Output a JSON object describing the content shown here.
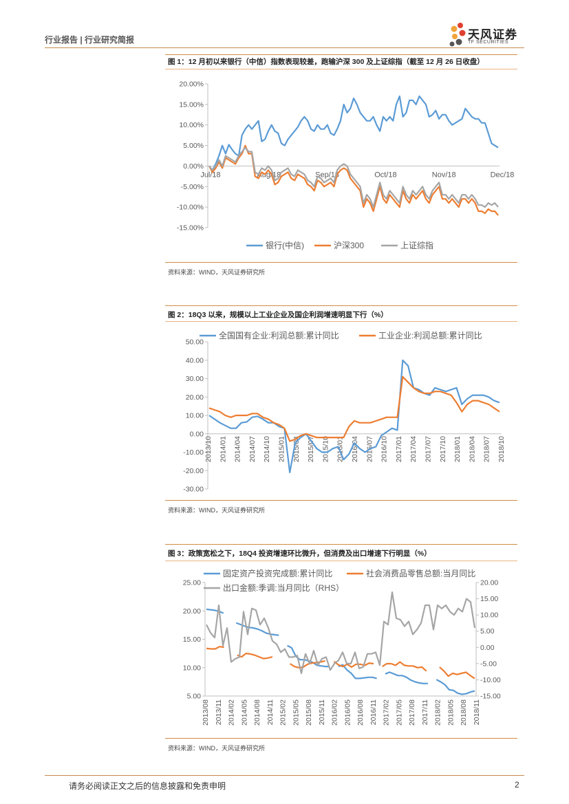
{
  "header": {
    "text": "行业报告 | 行业研究简报",
    "logo_cn": "天风证券",
    "logo_en": "TF SECURITIES"
  },
  "footer": {
    "disclaimer": "请务必阅读正文之后的信息披露和免责申明",
    "page": "2"
  },
  "figures": [
    {
      "title": "图 1：12 月初以来银行（中信）指数表现较差，跑输沪深 300 及上证综指（截至 12 月 26 日收盘）",
      "source": "资料来源：WIND，天风证券研究所"
    },
    {
      "title": "图 2：18Q3 以来，规模以上工业企业及国企利润增速明显下行（%）",
      "source": "资料来源：WIND，天风证券研究所"
    },
    {
      "title": "图 3：政策宽松之下，18Q4 投资增速环比微升，但消费及出口增速下行明显（%）",
      "source": "资料来源：WIND，天风证券研究所"
    }
  ],
  "chart_data": [
    {
      "type": "line",
      "x_ticks": [
        "Jul/18",
        "Aug/18",
        "Sep/18",
        "Oct/18",
        "Nov/18",
        "Dec/18"
      ],
      "y_ticks": [
        "20.00%",
        "15.00%",
        "10.00%",
        "5.00%",
        "0.00%",
        "-5.00%",
        "-10.00%",
        "-15.00%"
      ],
      "ylim": [
        -15,
        20
      ],
      "legend": "bottom",
      "colors": [
        "#5b9bd5",
        "#ed7d31",
        "#a5a5a5"
      ],
      "series": [
        {
          "name": "银行(中信)",
          "values": [
            0,
            -1,
            0.5,
            2.5,
            5,
            3,
            5.2,
            4,
            3,
            2.5,
            7.5,
            9,
            10,
            9,
            10,
            11,
            6,
            6.5,
            8.5,
            10,
            8.5,
            8,
            5.5,
            5,
            6.5,
            7.5,
            8.5,
            9.5,
            11,
            12,
            11,
            9,
            8.5,
            10,
            9,
            9,
            10,
            8,
            7.5,
            9,
            11,
            15,
            13,
            14,
            16.5,
            15,
            13,
            12,
            11,
            11,
            12,
            10,
            8.5,
            12,
            11,
            12,
            11,
            15,
            17,
            12,
            13,
            16,
            16,
            15,
            17,
            16,
            15,
            12,
            12.5,
            13.5,
            11.5,
            12.5,
            12.5,
            11,
            10,
            10.5,
            11,
            11.5,
            14,
            13,
            12,
            11.5,
            11.5,
            10.5,
            10.5,
            8,
            5.5,
            5,
            4.5
          ]
        },
        {
          "name": "沪深300",
          "values": [
            0,
            -1.5,
            -0.5,
            1,
            -0.5,
            2,
            1.5,
            1,
            0.5,
            2,
            3,
            5,
            3,
            3,
            -2.5,
            -3,
            -1.5,
            -2,
            -1,
            -2,
            -4.5,
            -4,
            -2.5,
            -2,
            -1.5,
            -3,
            -3.5,
            -2,
            -2.5,
            -3,
            -4.5,
            -5,
            -6,
            -3.5,
            -4,
            -5,
            -4.5,
            -4,
            -5,
            -2,
            -1,
            -0.5,
            -1,
            -3,
            -4,
            -5,
            -6,
            -10,
            -8,
            -9,
            -11,
            -8,
            -5,
            -8,
            -9,
            -7,
            -8,
            -9,
            -10,
            -6,
            -8,
            -9,
            -7,
            -8,
            -7,
            -6,
            -8,
            -9,
            -7,
            -6,
            -5,
            -8,
            -8,
            -9,
            -8,
            -9,
            -10,
            -8,
            -8,
            -9,
            -8,
            -9,
            -11,
            -11,
            -11.5,
            -10.5,
            -11,
            -11,
            -12
          ]
        },
        {
          "name": "上证综指",
          "values": [
            0,
            -1,
            0,
            1.5,
            0,
            2.5,
            2,
            1.5,
            1,
            2.5,
            3.5,
            4.5,
            3.5,
            3.5,
            -1.5,
            -2,
            -0.5,
            -1,
            0,
            -1,
            -3.5,
            -3,
            -1.5,
            -1,
            -0.5,
            -2,
            -2.5,
            -1,
            -1.5,
            -2,
            -3.5,
            -4,
            -5,
            -2.5,
            -3,
            -4,
            -3.5,
            -3,
            -4,
            -1,
            0,
            0.5,
            0,
            -2,
            -3,
            -4,
            -5,
            -9,
            -7,
            -8,
            -10,
            -7,
            -4,
            -7,
            -8,
            -6,
            -7,
            -8,
            -9,
            -5,
            -7,
            -8,
            -6,
            -7,
            -6,
            -5,
            -7,
            -8,
            -6,
            -5,
            -4,
            -7,
            -7,
            -8,
            -7,
            -8,
            -9,
            -7,
            -7,
            -8,
            -7,
            -8,
            -9.5,
            -9.5,
            -10,
            -9,
            -9.5,
            -9,
            -10
          ]
        }
      ]
    },
    {
      "type": "line",
      "x_ticks": [
        "2013/10",
        "2014/01",
        "2014/04",
        "2014/07",
        "2014/10",
        "2015/01",
        "2015/04",
        "2015/07",
        "2015/10",
        "2016/01",
        "2016/04",
        "2016/07",
        "2016/10",
        "2017/01",
        "2017/04",
        "2017/07",
        "2017/10",
        "2018/01",
        "2018/04",
        "2018/07",
        "2018/10"
      ],
      "y_ticks": [
        "50.00",
        "40.00",
        "30.00",
        "20.00",
        "10.00",
        "0.00",
        "-10.00",
        "-20.00",
        "-30.00"
      ],
      "ylim": [
        -30,
        50
      ],
      "legend": "top",
      "colors": [
        "#5b9bd5",
        "#ed7d31"
      ],
      "series": [
        {
          "name": "全国国有企业:利润总额:累计同比",
          "values": [
            10,
            8,
            6,
            4.5,
            3,
            3,
            6,
            6.5,
            9,
            9.5,
            8,
            6,
            6,
            4,
            3,
            -21,
            -5,
            -2,
            0,
            -4,
            -8,
            -10,
            -10,
            -8,
            -7,
            -14,
            -11,
            -5,
            -8,
            -10,
            -8,
            -7,
            -1,
            1,
            3,
            2,
            40,
            37,
            25,
            24,
            22,
            21,
            25,
            24,
            23,
            24,
            25,
            16,
            19,
            21,
            21,
            21,
            20,
            18,
            17
          ]
        },
        {
          "name": "工业企业:利润总额:累计同比",
          "values": [
            14,
            13,
            12,
            10,
            9,
            10,
            10,
            10,
            11,
            11,
            9,
            8,
            6,
            5,
            3,
            -4,
            -3,
            -1,
            0,
            -1,
            -2,
            -2,
            -2,
            -2,
            -2,
            -2,
            4,
            7,
            6,
            6,
            6,
            7,
            8,
            9,
            9,
            9,
            31,
            28,
            25,
            23,
            22,
            22,
            23,
            23,
            22,
            21,
            17,
            12,
            16,
            18,
            18,
            17,
            16,
            14,
            12
          ]
        }
      ]
    },
    {
      "type": "line",
      "x_ticks": [
        "2013/08",
        "2013/11",
        "2014/02",
        "2014/05",
        "2014/08",
        "2014/11",
        "2015/02",
        "2015/05",
        "2015/08",
        "2015/11",
        "2016/02",
        "2016/05",
        "2016/08",
        "2016/11",
        "2017/02",
        "2017/05",
        "2017/08",
        "2017/11",
        "2018/02",
        "2018/05",
        "2018/08",
        "2018/11"
      ],
      "y_ticks": [
        "25.00",
        "20.00",
        "15.00",
        "10.00",
        "5.00"
      ],
      "y2_ticks": [
        "20.00",
        "15.00",
        "10.00",
        "5.00",
        "0.00",
        "-5.00",
        "-10.00",
        "-15.00"
      ],
      "ylim": [
        5,
        25
      ],
      "y2lim": [
        -15,
        20
      ],
      "legend": "top",
      "colors": [
        "#5b9bd5",
        "#ed7d31",
        "#a5a5a5"
      ],
      "series": [
        {
          "name": "固定资产投资完成额:累计同比",
          "values": [
            20.3,
            20.2,
            20.1,
            19.9,
            19.6,
            null,
            null,
            17.9,
            17.6,
            17.3,
            17.1,
            17.0,
            16.8,
            16.5,
            16.1,
            15.9,
            15.8,
            15.7,
            null,
            13.9,
            13.5,
            12.0,
            11.4,
            11.4,
            11.2,
            10.9,
            10.4,
            10.3,
            10.2,
            10.2,
            null,
            10.2,
            10.5,
            9.6,
            9.0,
            8.1,
            8.1,
            8.2,
            8.3,
            8.3,
            8.1,
            null,
            8.9,
            9.2,
            8.9,
            8.6,
            8.6,
            8.3,
            7.8,
            7.5,
            7.3,
            7.2,
            7.2,
            null,
            7.9,
            7.5,
            7.0,
            6.1,
            6.0,
            5.5,
            5.3,
            5.4,
            5.7,
            5.9
          ]
        },
        {
          "name": "社会消费品零售总额:当月同比",
          "values": [
            13.4,
            13.3,
            13.3,
            13.7,
            13.6,
            null,
            null,
            12.2,
            11.9,
            12.5,
            12.4,
            12.2,
            11.9,
            11.6,
            11.7,
            11.9,
            null,
            null,
            null,
            10.7,
            10.2,
            10.0,
            10.1,
            10.6,
            10.8,
            10.9,
            11.0,
            11.2,
            null,
            11.1,
            10.5,
            10.2,
            10.6,
            10.1,
            10.6,
            10.6,
            10.4,
            10.8,
            10.7,
            null,
            10.2,
            10.7,
            10.7,
            10.4,
            11.0,
            10.4,
            10.3,
            10.3,
            10.0,
            10.1,
            9.4,
            null,
            null,
            10.1,
            9.4,
            8.5,
            9.0,
            8.8,
            9.0,
            9.2,
            8.6,
            8.1
          ]
        },
        {
          "name": "出口金额:季调:当月同比（RHS）",
          "values": [
            7,
            4.5,
            3,
            13,
            0.5,
            6,
            -4.5,
            -3.5,
            -3,
            11,
            4,
            12,
            11.5,
            7,
            9,
            6,
            2,
            1,
            -1.5,
            -0.5,
            -3,
            -3,
            -2.5,
            -8,
            -2,
            -5,
            -1,
            -5.5,
            -3.5,
            -3,
            -7,
            -5,
            -4,
            -1.5,
            -5,
            -5,
            -1.5,
            -6.5,
            -6,
            -2,
            -2,
            -1.5,
            -5.5,
            8,
            7,
            17,
            9,
            8.5,
            6.5,
            8,
            4,
            5.5,
            7.5,
            13,
            13,
            5.5,
            13,
            12,
            13,
            11,
            10,
            12,
            11,
            15,
            14,
            6
          ]
        }
      ]
    }
  ]
}
